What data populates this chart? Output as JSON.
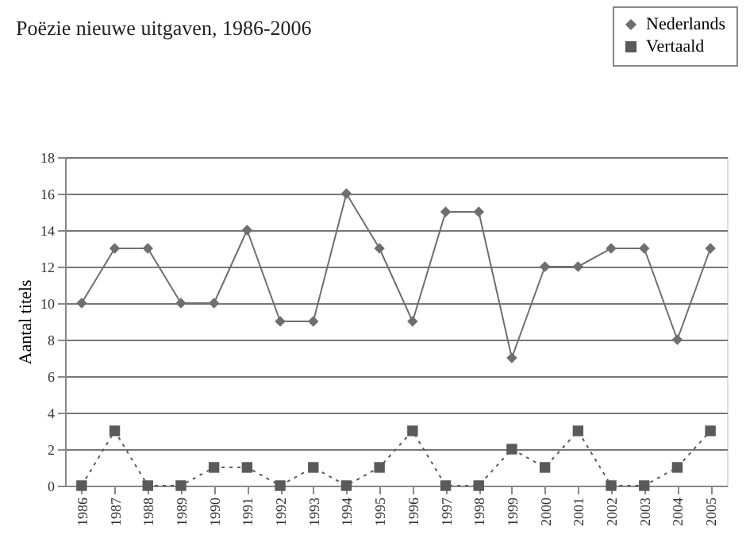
{
  "chart_data": {
    "type": "line",
    "title": "Poëzie nieuwe uitgaven, 1986-2006",
    "ylabel": "Aantal titels",
    "categories": [
      "1986",
      "1987",
      "1988",
      "1989",
      "1990",
      "1991",
      "1992",
      "1993",
      "1994",
      "1995",
      "1996",
      "1997",
      "1998",
      "1999",
      "2000",
      "2001",
      "2002",
      "2003",
      "2004",
      "2005"
    ],
    "series": [
      {
        "name": "Nederlands",
        "color": "#6e6e6e",
        "marker": "diamond",
        "line_style": "solid",
        "values": [
          10,
          13,
          13,
          10,
          10,
          14,
          9,
          9,
          16,
          13,
          9,
          15,
          15,
          7,
          12,
          12,
          13,
          13,
          8,
          13
        ]
      },
      {
        "name": "Vertaald",
        "color": "#5a5a5a",
        "marker": "square",
        "line_style": "dotted",
        "values": [
          0,
          3,
          0,
          0,
          1,
          1,
          0,
          1,
          0,
          1,
          3,
          0,
          0,
          2,
          1,
          3,
          0,
          0,
          1,
          3
        ]
      }
    ],
    "ylim": [
      0,
      18
    ],
    "yticks": [
      0,
      2,
      4,
      6,
      8,
      10,
      12,
      14,
      16,
      18
    ],
    "grid": "y",
    "legend": "top right"
  }
}
